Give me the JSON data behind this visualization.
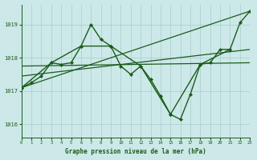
{
  "title": "Graphe pression niveau de la mer (hPa)",
  "bg_color": "#cce8e8",
  "grid_color": "#aacccc",
  "line_color": "#1a5c1a",
  "xlim": [
    0,
    23
  ],
  "ylim": [
    1015.6,
    1019.6
  ],
  "yticks": [
    1016,
    1017,
    1018,
    1019
  ],
  "xticks": [
    0,
    1,
    2,
    3,
    4,
    5,
    6,
    7,
    8,
    9,
    10,
    11,
    12,
    13,
    14,
    15,
    16,
    17,
    18,
    19,
    20,
    21,
    22,
    23
  ],
  "series": [
    {
      "x": [
        0,
        1,
        2,
        3,
        4,
        5,
        6,
        7,
        8,
        9,
        10,
        11,
        12,
        13,
        14,
        15,
        16,
        17,
        18,
        19,
        20,
        21,
        22,
        23
      ],
      "y": [
        1017.1,
        1017.25,
        1017.45,
        1017.85,
        1017.8,
        1017.85,
        1018.35,
        1019.0,
        1018.55,
        1018.35,
        1017.75,
        1017.5,
        1017.75,
        1017.35,
        1016.85,
        1016.3,
        1016.15,
        1016.9,
        1017.8,
        1017.85,
        1018.25,
        1018.25,
        1019.05,
        1019.4
      ],
      "marker": "D",
      "marker_size": 2.0,
      "linewidth": 1.0,
      "zorder": 5
    },
    {
      "x": [
        0,
        3,
        6,
        9,
        12,
        15,
        18,
        21
      ],
      "y": [
        1017.1,
        1017.85,
        1018.35,
        1018.35,
        1017.75,
        1016.3,
        1017.8,
        1018.25
      ],
      "marker": "D",
      "marker_size": 2.0,
      "linewidth": 1.0,
      "zorder": 4
    },
    {
      "x": [
        0,
        23
      ],
      "y": [
        1017.1,
        1019.4
      ],
      "marker": null,
      "linewidth": 0.9,
      "zorder": 3
    },
    {
      "x": [
        0,
        23
      ],
      "y": [
        1017.45,
        1018.25
      ],
      "marker": null,
      "linewidth": 0.9,
      "zorder": 3
    },
    {
      "x": [
        0,
        23
      ],
      "y": [
        1017.75,
        1017.85
      ],
      "marker": null,
      "linewidth": 0.9,
      "zorder": 3
    }
  ]
}
